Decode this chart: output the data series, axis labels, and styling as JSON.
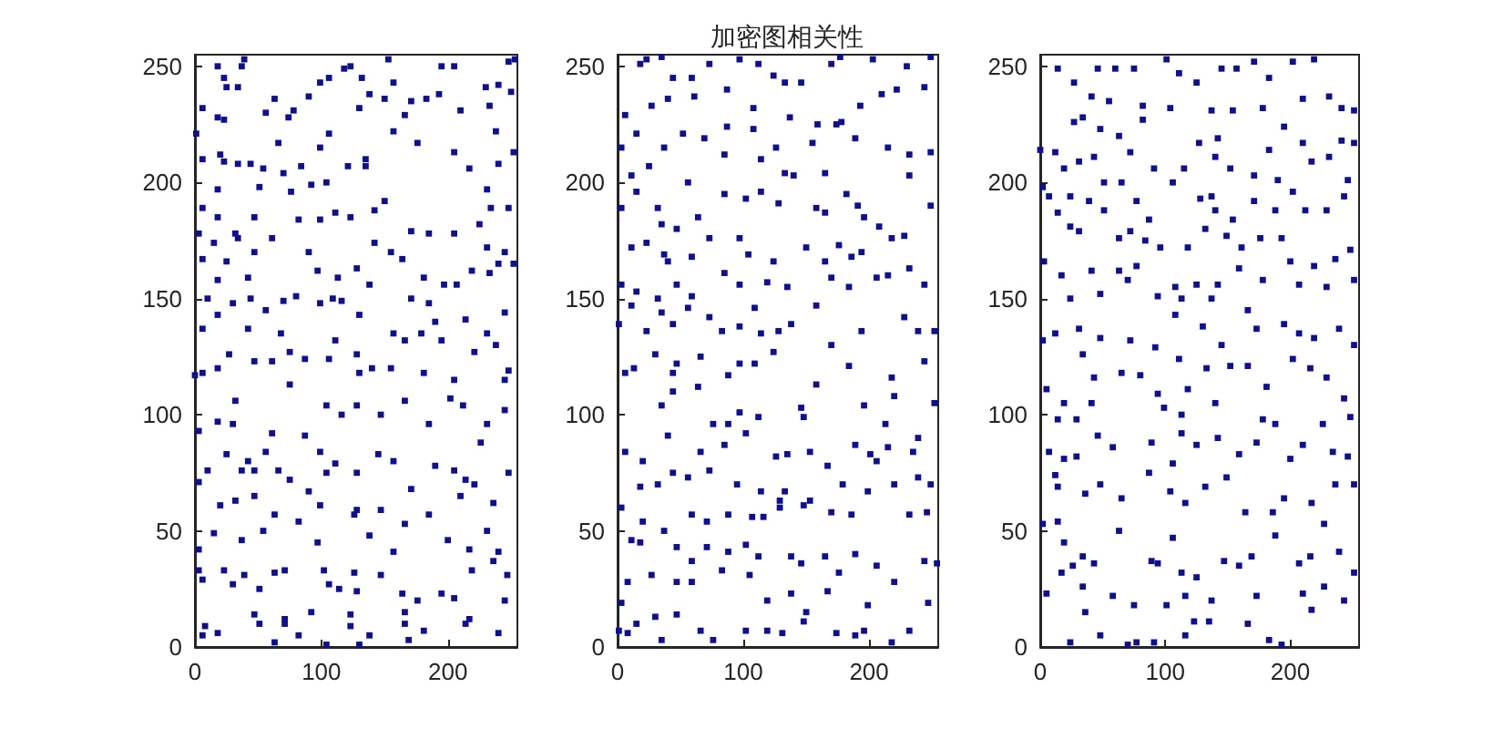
{
  "chart_data": [
    {
      "type": "scatter",
      "color": "#10108c",
      "marker": "square",
      "xlim": [
        0,
        255
      ],
      "xticks": [
        0,
        100,
        200
      ],
      "ylim": [
        0,
        255
      ],
      "yticks": [
        0,
        50,
        100,
        150,
        200,
        250
      ],
      "x": [
        18,
        37,
        39,
        23,
        25,
        34,
        6,
        18,
        23,
        63,
        56,
        74,
        78,
        90,
        99,
        106,
        118,
        123,
        132,
        138,
        130,
        153,
        157,
        150,
        171,
        183,
        195,
        205,
        193,
        210,
        230,
        240,
        233,
        248,
        253,
        250,
        238,
        166,
        157,
        1,
        6,
        20,
        23,
        18,
        6,
        34,
        44,
        54,
        66,
        70,
        84,
        99,
        106,
        121,
        135,
        135,
        104,
        92,
        76,
        51,
        18,
        32,
        47,
        82,
        99,
        111,
        123,
        142,
        150,
        176,
        205,
        217,
        231,
        234,
        248,
        252,
        240,
        171,
        185,
        205,
        225,
        240,
        61,
        3,
        6,
        15,
        25,
        34,
        42,
        47,
        18,
        10,
        18,
        30,
        44,
        56,
        70,
        80,
        90,
        97,
        99,
        109,
        113,
        116,
        128,
        130,
        138,
        142,
        155,
        164,
        171,
        181,
        185,
        190,
        197,
        207,
        214,
        219,
        231,
        245,
        252,
        245,
        231,
        157,
        179,
        68,
        6,
        42,
        233,
        0,
        6,
        18,
        27,
        47,
        61,
        75,
        75,
        87,
        106,
        111,
        128,
        130,
        140,
        155,
        166,
        181,
        195,
        205,
        221,
        238,
        248,
        245,
        32,
        18,
        3,
        30,
        61,
        87,
        104,
        116,
        128,
        147,
        166,
        185,
        202,
        212,
        231,
        245,
        226,
        25,
        42,
        56,
        99,
        10,
        3,
        37,
        47,
        66,
        75,
        104,
        111,
        128,
        145,
        157,
        171,
        190,
        205,
        214,
        210,
        221,
        236,
        248,
        20,
        32,
        47,
        63,
        90,
        99,
        128,
        147,
        166,
        185,
        200,
        217,
        231,
        15,
        37,
        54,
        82,
        97,
        126,
        138,
        157,
        240,
        3,
        3,
        6,
        23,
        30,
        39,
        51,
        63,
        71,
        102,
        106,
        114,
        126,
        128,
        147,
        164,
        176,
        195,
        205,
        219,
        236,
        247,
        245,
        8,
        6,
        18,
        47,
        51,
        63,
        71,
        71,
        82,
        92,
        104,
        123,
        123,
        130,
        138,
        166,
        166,
        169,
        181,
        214,
        217,
        240
      ],
      "values": [
        250,
        250,
        253,
        245,
        241,
        241,
        232,
        228,
        227,
        236,
        230,
        228,
        231,
        237,
        243,
        245,
        249,
        250,
        245,
        238,
        232,
        253,
        243,
        236,
        235,
        236,
        250,
        250,
        238,
        231,
        241,
        242,
        233,
        252,
        253,
        239,
        222,
        229,
        222,
        221,
        210,
        212,
        209,
        197,
        189,
        208,
        208,
        206,
        217,
        204,
        207,
        215,
        221,
        207,
        207,
        210,
        200,
        199,
        196,
        198,
        185,
        178,
        185,
        184,
        184,
        187,
        185,
        188,
        192,
        217,
        213,
        206,
        197,
        189,
        189,
        213,
        208,
        179,
        178,
        178,
        182,
        165,
        176,
        178,
        167,
        174,
        166,
        176,
        159,
        170,
        158,
        150,
        143,
        148,
        150,
        145,
        149,
        151,
        170,
        162,
        148,
        150,
        159,
        149,
        163,
        143,
        156,
        174,
        170,
        167,
        150,
        159,
        148,
        140,
        156,
        156,
        141,
        162,
        172,
        170,
        165,
        144,
        135,
        135,
        135,
        135,
        137,
        137,
        161,
        117,
        118,
        120,
        126,
        123,
        123,
        127,
        113,
        124,
        124,
        132,
        126,
        118,
        120,
        120,
        132,
        118,
        132,
        115,
        127,
        130,
        119,
        115,
        106,
        97,
        93,
        96,
        92,
        91,
        104,
        100,
        104,
        100,
        106,
        96,
        107,
        104,
        96,
        102,
        88,
        83,
        80,
        84,
        84,
        76,
        71,
        76,
        76,
        76,
        72,
        75,
        79,
        75,
        83,
        80,
        68,
        78,
        76,
        72,
        65,
        70,
        62,
        75,
        61,
        63,
        65,
        57,
        67,
        61,
        59,
        59,
        53,
        57,
        46,
        42,
        50,
        49,
        46,
        50,
        54,
        45,
        57,
        48,
        41,
        41,
        42,
        33,
        29,
        33,
        27,
        31,
        25,
        32,
        33,
        33,
        27,
        25,
        32,
        24,
        31,
        23,
        20,
        23,
        21,
        33,
        37,
        31,
        20,
        9,
        5,
        6,
        14,
        10,
        2,
        12,
        10,
        5,
        15,
        1,
        14,
        9,
        1,
        5,
        15,
        10,
        3,
        7,
        10,
        12,
        6
      ]
    },
    {
      "type": "scatter",
      "title": "加密图相关性",
      "color": "#10108c",
      "marker": "square",
      "xlim": [
        0,
        255
      ],
      "xticks": [
        0,
        100,
        200
      ],
      "ylim": [
        0,
        255
      ],
      "yticks": [
        0,
        50,
        100,
        150,
        200,
        250
      ],
      "x": [
        18,
        23,
        35,
        44,
        59,
        73,
        97,
        112,
        124,
        133,
        146,
        170,
        177,
        203,
        230,
        249,
        6,
        27,
        40,
        61,
        87,
        108,
        137,
        159,
        178,
        193,
        210,
        222,
        244,
        3,
        15,
        37,
        52,
        69,
        87,
        108,
        126,
        155,
        174,
        189,
        215,
        232,
        11,
        25,
        56,
        85,
        114,
        133,
        140,
        165,
        232,
        249,
        3,
        15,
        32,
        35,
        47,
        64,
        73,
        85,
        102,
        114,
        128,
        158,
        165,
        182,
        191,
        196,
        208,
        218,
        228,
        249,
        11,
        23,
        37,
        40,
        59,
        97,
        104,
        124,
        150,
        165,
        176,
        194,
        215,
        232,
        244,
        3,
        15,
        32,
        47,
        59,
        85,
        97,
        119,
        135,
        170,
        184,
        206,
        186,
        1,
        11,
        23,
        35,
        44,
        56,
        73,
        83,
        97,
        109,
        114,
        128,
        138,
        158,
        170,
        194,
        228,
        239,
        252,
        6,
        13,
        30,
        44,
        47,
        66,
        88,
        97,
        109,
        124,
        158,
        184,
        218,
        220,
        244,
        35,
        44,
        64,
        76,
        88,
        97,
        112,
        146,
        148,
        196,
        213,
        252,
        6,
        20,
        40,
        66,
        85,
        102,
        126,
        135,
        153,
        167,
        189,
        201,
        206,
        215,
        235,
        239,
        18,
        32,
        44,
        56,
        73,
        95,
        114,
        129,
        133,
        153,
        179,
        199,
        220,
        239,
        249,
        3,
        20,
        59,
        71,
        88,
        107,
        116,
        129,
        148,
        170,
        186,
        232,
        246,
        11,
        18,
        37,
        47,
        59,
        71,
        88,
        102,
        112,
        138,
        146,
        165,
        189,
        206,
        244,
        254,
        8,
        27,
        47,
        59,
        83,
        105,
        119,
        138,
        150,
        167,
        176,
        199,
        220,
        247,
        3,
        1,
        8,
        15,
        30,
        35,
        47,
        66,
        76,
        102,
        119,
        131,
        148,
        174,
        189,
        196,
        218,
        232
      ],
      "values": [
        251,
        253,
        254,
        245,
        245,
        251,
        253,
        251,
        246,
        243,
        243,
        251,
        254,
        253,
        250,
        254,
        229,
        233,
        236,
        237,
        240,
        232,
        228,
        225,
        226,
        233,
        238,
        240,
        241,
        215,
        221,
        215,
        221,
        219,
        224,
        223,
        215,
        217,
        225,
        219,
        215,
        212,
        203,
        207,
        200,
        212,
        210,
        204,
        203,
        204,
        203,
        213,
        189,
        196,
        189,
        182,
        180,
        185,
        176,
        195,
        193,
        196,
        191,
        189,
        187,
        195,
        190,
        185,
        181,
        176,
        177,
        190,
        172,
        174,
        169,
        166,
        168,
        176,
        169,
        166,
        172,
        166,
        173,
        170,
        160,
        163,
        156,
        156,
        153,
        150,
        156,
        151,
        161,
        156,
        157,
        155,
        159,
        155,
        159,
        168,
        139,
        147,
        136,
        144,
        139,
        146,
        142,
        136,
        138,
        146,
        135,
        136,
        139,
        147,
        130,
        136,
        142,
        136,
        136,
        118,
        120,
        126,
        118,
        122,
        125,
        117,
        122,
        122,
        127,
        113,
        121,
        116,
        108,
        123,
        104,
        110,
        112,
        96,
        96,
        101,
        99,
        103,
        99,
        104,
        96,
        105,
        84,
        80,
        91,
        84,
        87,
        92,
        82,
        83,
        84,
        78,
        87,
        83,
        80,
        86,
        84,
        90,
        69,
        70,
        75,
        73,
        76,
        70,
        67,
        63,
        67,
        63,
        70,
        67,
        70,
        73,
        70,
        60,
        54,
        57,
        54,
        57,
        56,
        56,
        60,
        61,
        58,
        57,
        57,
        58,
        46,
        45,
        50,
        43,
        37,
        43,
        41,
        44,
        39,
        39,
        36,
        39,
        40,
        35,
        37,
        36,
        28,
        31,
        28,
        28,
        33,
        31,
        20,
        23,
        15,
        24,
        32,
        18,
        28,
        19,
        19,
        7,
        6,
        10,
        13,
        3,
        14,
        7,
        3,
        7,
        7,
        6,
        11,
        6,
        5,
        7,
        2,
        7
      ]
    },
    {
      "type": "scatter",
      "color": "#10108c",
      "marker": "square",
      "xlim": [
        0,
        255
      ],
      "xticks": [
        0,
        100,
        200
      ],
      "ylim": [
        0,
        255
      ],
      "yticks": [
        0,
        50,
        100,
        150,
        200,
        250
      ],
      "x": [
        14,
        46,
        60,
        75,
        101,
        111,
        125,
        145,
        157,
        171,
        183,
        202,
        219,
        27,
        41,
        55,
        82,
        104,
        137,
        154,
        178,
        210,
        231,
        241,
        251,
        27,
        34,
        48,
        63,
        82,
        127,
        142,
        183,
        195,
        210,
        241,
        251,
        0,
        12,
        19,
        31,
        43,
        51,
        72,
        91,
        115,
        140,
        152,
        171,
        190,
        217,
        231,
        246,
        2,
        7,
        24,
        39,
        51,
        65,
        77,
        87,
        106,
        128,
        137,
        140,
        154,
        171,
        188,
        202,
        212,
        229,
        243,
        14,
        24,
        31,
        63,
        72,
        84,
        96,
        118,
        132,
        149,
        161,
        176,
        193,
        200,
        219,
        236,
        248,
        3,
        17,
        41,
        63,
        70,
        77,
        108,
        125,
        142,
        159,
        178,
        207,
        229,
        251,
        24,
        48,
        94,
        113,
        137,
        2,
        12,
        31,
        34,
        48,
        72,
        92,
        108,
        130,
        145,
        166,
        173,
        195,
        207,
        219,
        239,
        251,
        5,
        19,
        43,
        65,
        80,
        94,
        111,
        118,
        133,
        152,
        166,
        181,
        202,
        216,
        229,
        243,
        14,
        29,
        41,
        99,
        113,
        140,
        178,
        188,
        226,
        248,
        7,
        19,
        29,
        46,
        58,
        89,
        106,
        113,
        125,
        142,
        159,
        173,
        200,
        210,
        234,
        246,
        12,
        14,
        36,
        48,
        65,
        87,
        104,
        116,
        132,
        149,
        164,
        186,
        195,
        217,
        236,
        251,
        2,
        14,
        19,
        26,
        17,
        34,
        43,
        63,
        89,
        94,
        106,
        113,
        125,
        147,
        159,
        169,
        188,
        207,
        216,
        227,
        239,
        251,
        5,
        34,
        58,
        75,
        101,
        116,
        137,
        173,
        210,
        227,
        243,
        24,
        36,
        48,
        70,
        77,
        91,
        116,
        123,
        135,
        166,
        183,
        193,
        217
      ],
      "values": [
        249,
        249,
        249,
        249,
        253,
        247,
        243,
        249,
        249,
        252,
        245,
        252,
        253,
        243,
        237,
        235,
        233,
        232,
        231,
        231,
        232,
        236,
        237,
        232,
        231,
        226,
        228,
        223,
        220,
        227,
        217,
        219,
        214,
        224,
        217,
        218,
        217,
        214,
        213,
        206,
        209,
        211,
        200,
        213,
        206,
        206,
        211,
        206,
        203,
        201,
        209,
        211,
        201,
        198,
        194,
        194,
        192,
        188,
        200,
        192,
        184,
        200,
        193,
        194,
        188,
        184,
        192,
        188,
        196,
        188,
        188,
        194,
        187,
        181,
        179,
        176,
        179,
        175,
        172,
        172,
        180,
        177,
        172,
        176,
        176,
        166,
        164,
        167,
        171,
        166,
        160,
        162,
        162,
        158,
        164,
        155,
        156,
        156,
        163,
        158,
        156,
        155,
        158,
        150,
        152,
        151,
        150,
        150,
        132,
        135,
        137,
        126,
        133,
        132,
        129,
        143,
        138,
        130,
        145,
        137,
        139,
        135,
        133,
        137,
        130,
        111,
        105,
        116,
        118,
        117,
        109,
        124,
        111,
        120,
        121,
        121,
        112,
        124,
        120,
        116,
        107,
        98,
        98,
        105,
        103,
        100,
        105,
        98,
        96,
        96,
        99,
        84,
        81,
        82,
        91,
        86,
        88,
        79,
        92,
        87,
        90,
        83,
        88,
        81,
        87,
        84,
        82,
        74,
        69,
        66,
        70,
        64,
        75,
        67,
        62,
        69,
        73,
        58,
        58,
        64,
        62,
        70,
        70,
        53,
        54,
        45,
        35,
        32,
        39,
        36,
        50,
        37,
        36,
        47,
        32,
        30,
        37,
        35,
        39,
        48,
        36,
        39,
        53,
        41,
        32,
        23,
        26,
        22,
        18,
        18,
        22,
        20,
        22,
        23,
        26,
        20,
        2,
        15,
        5,
        1,
        2,
        2,
        5,
        11,
        11,
        10,
        3,
        1,
        16
      ]
    }
  ]
}
